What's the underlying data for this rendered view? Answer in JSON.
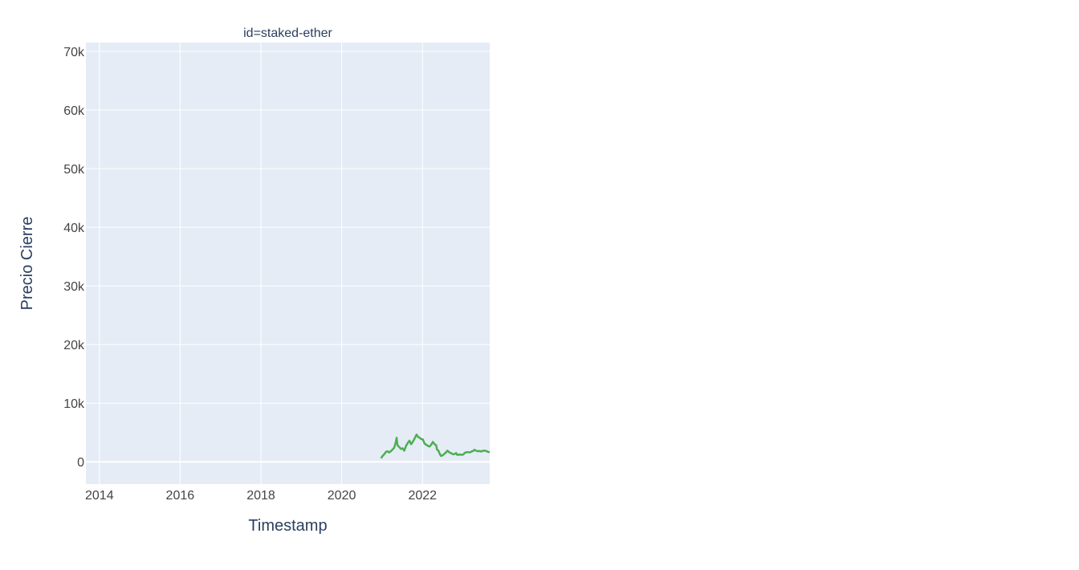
{
  "chart_data": {
    "type": "line",
    "title": "id=staked-ether",
    "xlabel": "Timestamp",
    "ylabel": "Precio Cierre",
    "xlim": [
      "2013-09-01",
      "2023-09-01"
    ],
    "ylim": [
      -3800,
      71500
    ],
    "x_ticks": [
      "2014",
      "2016",
      "2018",
      "2020",
      "2022"
    ],
    "y_ticks": [
      {
        "value": 0,
        "label": "0"
      },
      {
        "value": 10000,
        "label": "10k"
      },
      {
        "value": 20000,
        "label": "20k"
      },
      {
        "value": 30000,
        "label": "30k"
      },
      {
        "value": 40000,
        "label": "40k"
      },
      {
        "value": 50000,
        "label": "50k"
      },
      {
        "value": 60000,
        "label": "60k"
      },
      {
        "value": 70000,
        "label": "70k"
      }
    ],
    "grid": true,
    "legend": false,
    "colors": {
      "line": "#4caf50",
      "plot_bg": "#e5ecf6",
      "grid": "#ffffff"
    },
    "series": [
      {
        "x": [
          "2020-12-22",
          "2021-01-05",
          "2021-01-20",
          "2021-02-05",
          "2021-02-20",
          "2021-03-05",
          "2021-03-20",
          "2021-04-05",
          "2021-04-20",
          "2021-05-05",
          "2021-05-12",
          "2021-05-20",
          "2021-06-01",
          "2021-06-20",
          "2021-07-05",
          "2021-07-20",
          "2021-08-05",
          "2021-08-20",
          "2021-09-05",
          "2021-09-20",
          "2021-10-05",
          "2021-10-20",
          "2021-11-08",
          "2021-11-20",
          "2021-12-05",
          "2021-12-20",
          "2022-01-05",
          "2022-01-20",
          "2022-02-05",
          "2022-02-20",
          "2022-03-05",
          "2022-03-20",
          "2022-04-05",
          "2022-04-20",
          "2022-05-05",
          "2022-05-12",
          "2022-05-25",
          "2022-06-10",
          "2022-06-18",
          "2022-07-01",
          "2022-07-15",
          "2022-08-01",
          "2022-08-15",
          "2022-09-01",
          "2022-09-15",
          "2022-10-01",
          "2022-10-15",
          "2022-11-01",
          "2022-11-10",
          "2022-11-20",
          "2022-12-05",
          "2022-12-20",
          "2023-01-05",
          "2023-01-20",
          "2023-02-05",
          "2023-02-20",
          "2023-03-05",
          "2023-03-20",
          "2023-04-05",
          "2023-04-15",
          "2023-05-01",
          "2023-05-15",
          "2023-06-01",
          "2023-06-15",
          "2023-07-01",
          "2023-07-15",
          "2023-08-01",
          "2023-08-15",
          "2023-09-01"
        ],
        "y": [
          600,
          1000,
          1300,
          1700,
          1800,
          1600,
          1800,
          2100,
          2400,
          3400,
          4100,
          2800,
          2600,
          2200,
          2300,
          1900,
          2700,
          3200,
          3600,
          3000,
          3400,
          3900,
          4650,
          4300,
          4100,
          3900,
          3800,
          3100,
          2900,
          2700,
          2600,
          2900,
          3400,
          3000,
          2800,
          2100,
          1900,
          1200,
          1000,
          1100,
          1300,
          1600,
          1900,
          1600,
          1500,
          1300,
          1300,
          1500,
          1200,
          1200,
          1250,
          1200,
          1250,
          1550,
          1650,
          1650,
          1600,
          1750,
          1850,
          2050,
          1900,
          1800,
          1850,
          1750,
          1900,
          1900,
          1850,
          1700,
          1650
        ]
      }
    ]
  }
}
